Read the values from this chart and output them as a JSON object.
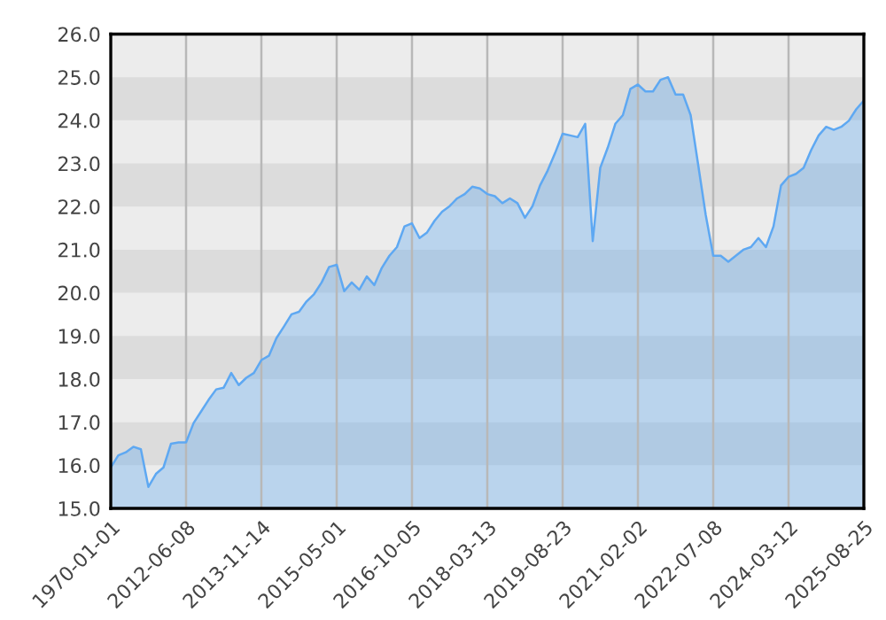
{
  "chart_data": {
    "type": "area",
    "categories": [
      "1970-01-01",
      null,
      null,
      null,
      null,
      null,
      null,
      null,
      null,
      null,
      "2012-06-08",
      null,
      null,
      null,
      null,
      null,
      null,
      null,
      null,
      null,
      "2013-11-14",
      null,
      null,
      null,
      null,
      null,
      null,
      null,
      null,
      null,
      "2015-05-01",
      null,
      null,
      null,
      null,
      null,
      null,
      null,
      null,
      null,
      "2016-10-05",
      null,
      null,
      null,
      null,
      null,
      null,
      null,
      null,
      null,
      "2018-03-13",
      null,
      null,
      null,
      null,
      null,
      null,
      null,
      null,
      null,
      "2019-08-23",
      null,
      null,
      null,
      null,
      null,
      null,
      null,
      null,
      null,
      "2021-02-02",
      null,
      null,
      null,
      null,
      null,
      null,
      null,
      null,
      null,
      "2022-07-08",
      null,
      null,
      null,
      null,
      null,
      null,
      null,
      null,
      null,
      "2024-03-12",
      null,
      null,
      null,
      null,
      null,
      null,
      null,
      null,
      null,
      "2025-08-25"
    ],
    "series": [
      {
        "color": "#5ea8f2",
        "values": [
          15.95,
          16.23,
          16.3,
          16.43,
          16.37,
          15.5,
          15.8,
          15.95,
          16.5,
          16.53,
          16.53,
          16.98,
          17.25,
          17.52,
          17.76,
          17.8,
          18.14,
          17.86,
          18.03,
          18.14,
          18.44,
          18.54,
          18.95,
          19.22,
          19.5,
          19.56,
          19.8,
          19.97,
          20.24,
          20.6,
          20.65,
          20.04,
          20.24,
          20.07,
          20.38,
          20.18,
          20.58,
          20.86,
          21.06,
          21.54,
          21.61,
          21.27,
          21.4,
          21.67,
          21.88,
          22.01,
          22.19,
          22.29,
          22.46,
          22.42,
          22.29,
          22.24,
          22.08,
          22.19,
          22.08,
          21.74,
          22.01,
          22.49,
          22.83,
          23.24,
          23.69,
          23.65,
          23.61,
          23.92,
          21.2,
          22.9,
          23.37,
          23.92,
          24.12,
          24.73,
          24.83,
          24.67,
          24.67,
          24.94,
          25.0,
          24.6,
          24.6,
          24.12,
          22.97,
          21.81,
          20.86,
          20.86,
          20.72,
          20.86,
          21.0,
          21.06,
          21.27,
          21.06,
          21.54,
          22.49,
          22.69,
          22.76,
          22.9,
          23.31,
          23.65,
          23.85,
          23.78,
          23.85,
          23.99,
          24.26,
          24.46
        ]
      }
    ],
    "ylim": [
      15,
      26
    ],
    "yticks": [
      {
        "value": 15,
        "label": "15.0"
      },
      {
        "value": 16,
        "label": "16.0"
      },
      {
        "value": 17,
        "label": "17.0"
      },
      {
        "value": 18,
        "label": "18.0"
      },
      {
        "value": 19,
        "label": "19.0"
      },
      {
        "value": 20,
        "label": "20.0"
      },
      {
        "value": 21,
        "label": "21.0"
      },
      {
        "value": 22,
        "label": "22.0"
      },
      {
        "value": 23,
        "label": "23.0"
      },
      {
        "value": 24,
        "label": "24.0"
      },
      {
        "value": 25,
        "label": "25.0"
      },
      {
        "value": 26,
        "label": "26.0"
      }
    ],
    "bands": [
      {
        "axis": "y",
        "from": 16,
        "to": 17,
        "color": "#dcdcdc"
      },
      {
        "axis": "y",
        "from": 18,
        "to": 19,
        "color": "#dcdcdc"
      },
      {
        "axis": "y",
        "from": 20,
        "to": 21,
        "color": "#dcdcdc"
      },
      {
        "axis": "y",
        "from": 22,
        "to": 23,
        "color": "#dcdcdc"
      },
      {
        "axis": "y",
        "from": 24,
        "to": 25,
        "color": "#dcdcdc"
      }
    ],
    "grid": "x"
  }
}
